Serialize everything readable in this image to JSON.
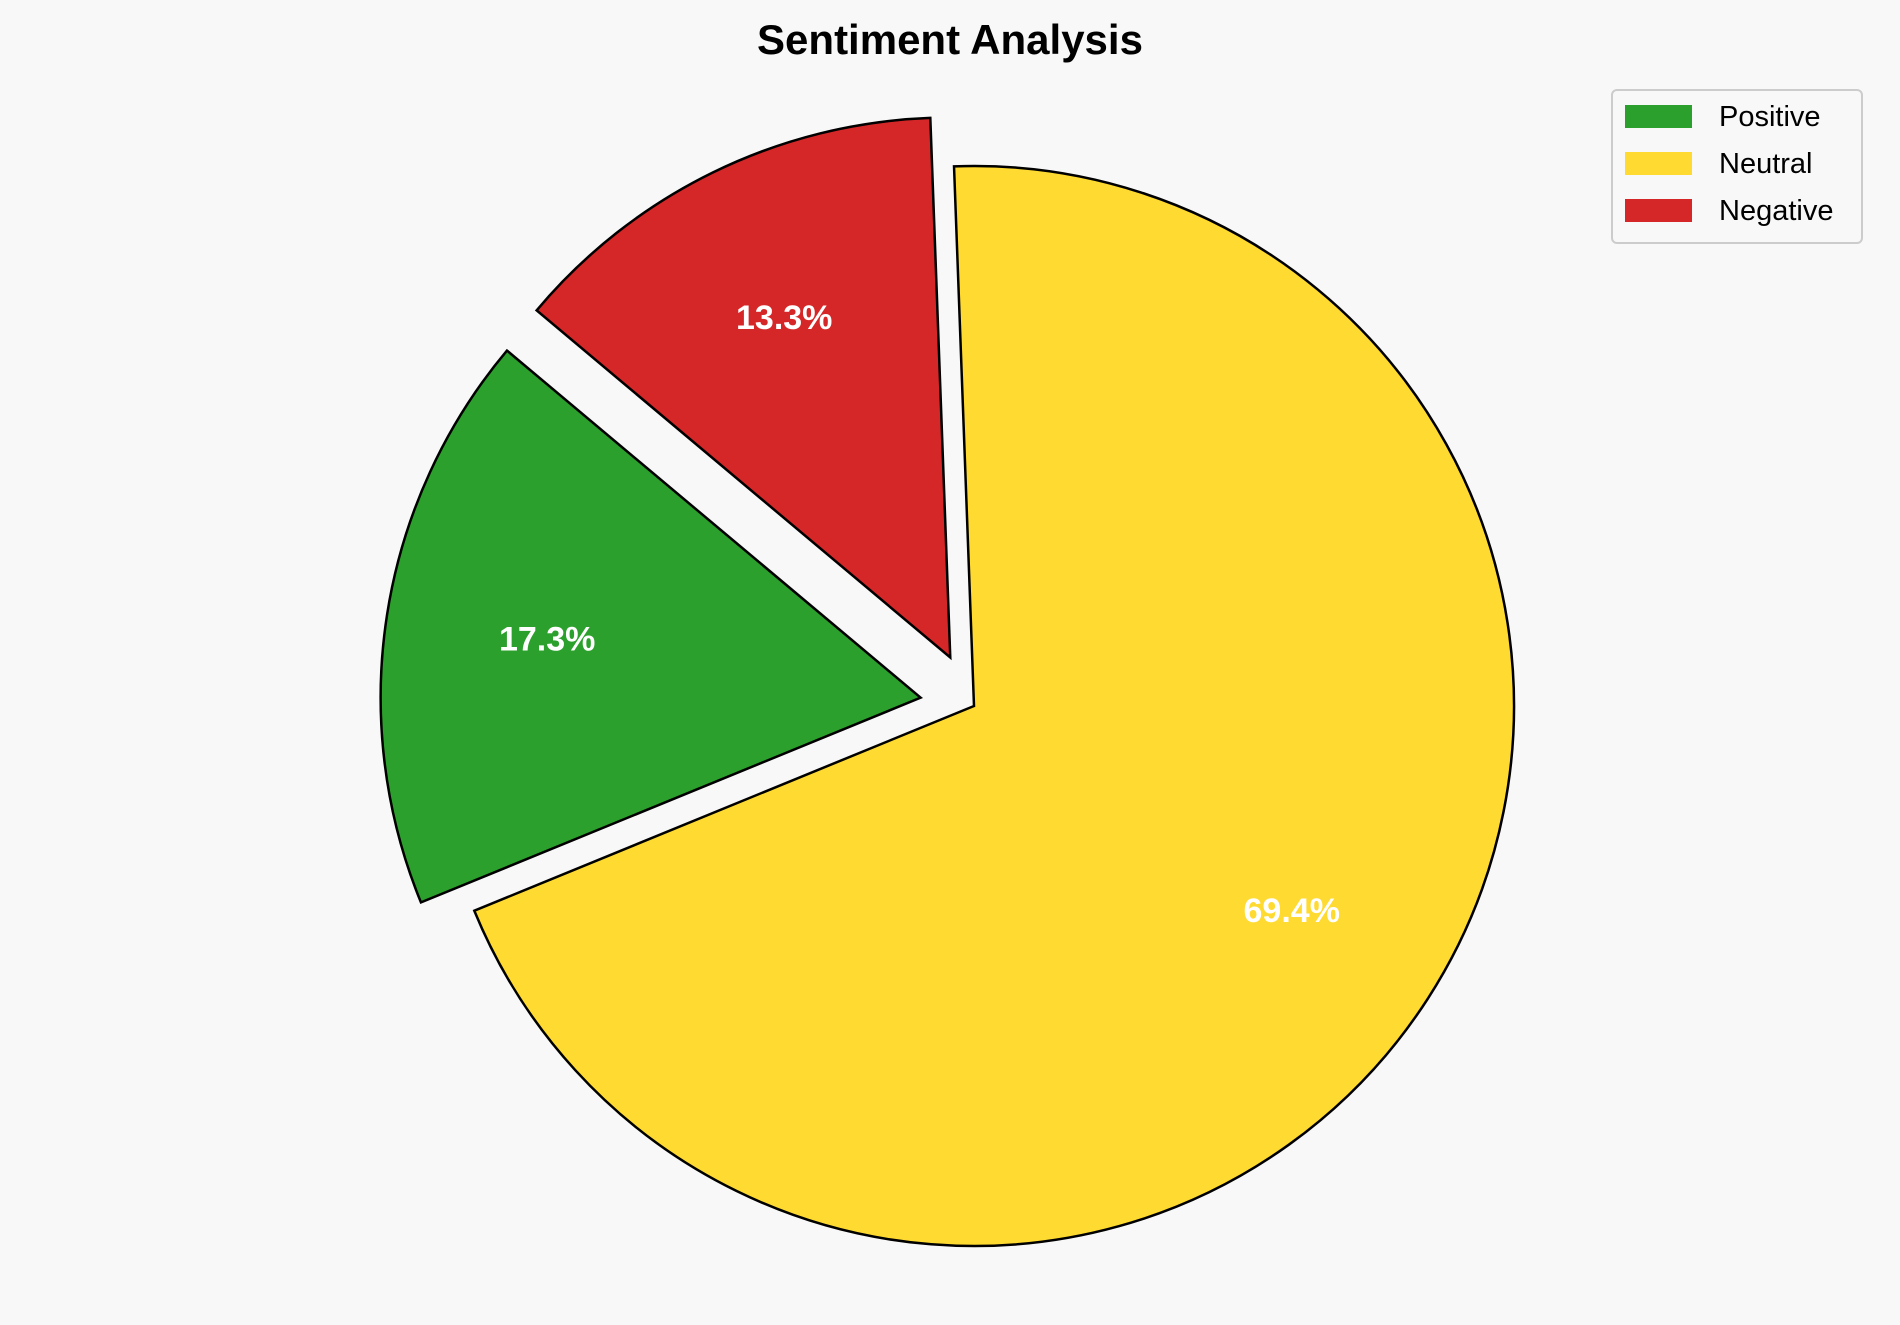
{
  "chart_data": {
    "type": "pie",
    "title": "Sentiment Analysis",
    "categories": [
      "Positive",
      "Neutral",
      "Negative"
    ],
    "values": [
      17.3,
      69.4,
      13.3
    ],
    "value_labels": [
      "17.3%",
      "69.4%",
      "13.3%"
    ],
    "colors": [
      "#2ca02c",
      "#ffda30",
      "#d62728"
    ],
    "explode": [
      0.1,
      0,
      0.1
    ],
    "start_angle_deg": 140,
    "direction": "counterclockwise",
    "edge_color": "#000000",
    "legend": {
      "entries": [
        "Positive",
        "Neutral",
        "Negative"
      ],
      "placement": "top-right"
    }
  }
}
